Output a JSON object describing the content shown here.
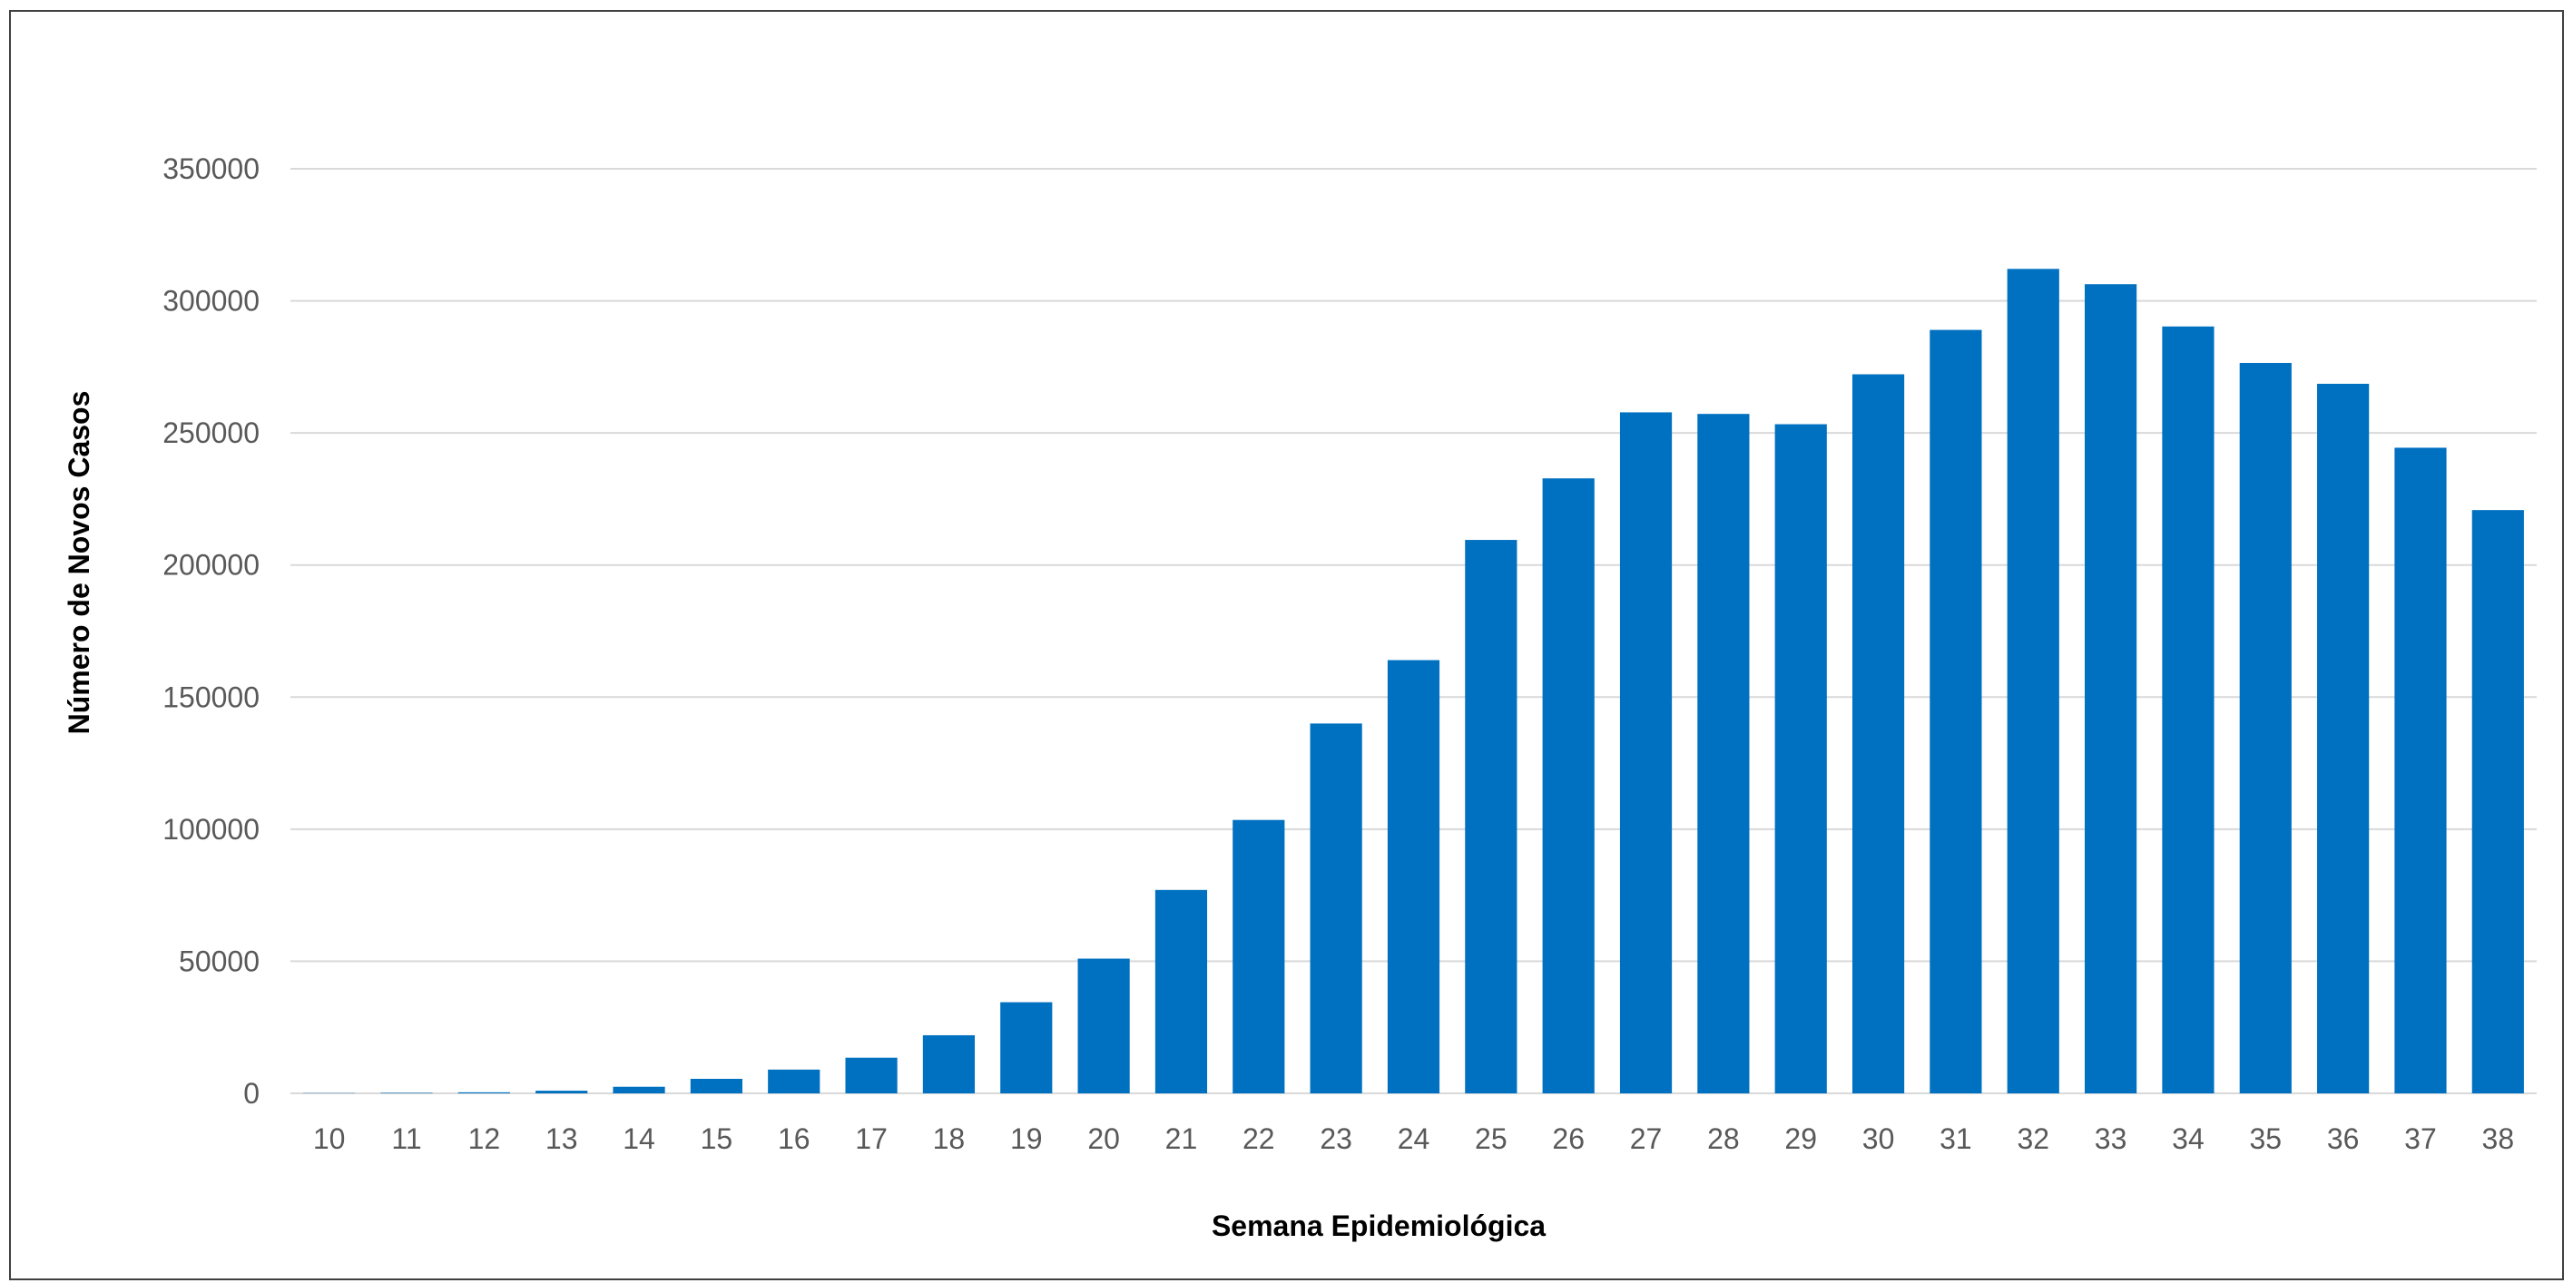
{
  "chart_data": {
    "type": "bar",
    "title": "",
    "xlabel": "Semana Epidemiológica",
    "ylabel": "Número de Novos Casos",
    "categories": [
      "10",
      "11",
      "12",
      "13",
      "14",
      "15",
      "16",
      "17",
      "18",
      "19",
      "20",
      "21",
      "22",
      "23",
      "24",
      "25",
      "26",
      "27",
      "28",
      "29",
      "30",
      "31",
      "32",
      "33",
      "34",
      "35",
      "36",
      "37",
      "38"
    ],
    "values": [
      100,
      200,
      400,
      1000,
      2500,
      5500,
      9000,
      13500,
      22000,
      34500,
      51000,
      77000,
      103500,
      140000,
      164000,
      209500,
      232800,
      257800,
      257200,
      253300,
      272200,
      289000,
      312100,
      306300,
      290300,
      276500,
      268600,
      244400,
      220800
    ],
    "yticks": [
      "0",
      "50000",
      "100000",
      "150000",
      "200000",
      "250000",
      "300000",
      "350000"
    ],
    "ylim": [
      0,
      350000
    ],
    "grid": true,
    "legend": "none",
    "bar_color": "#0070C0",
    "grid_color": "#D9D9D9"
  }
}
